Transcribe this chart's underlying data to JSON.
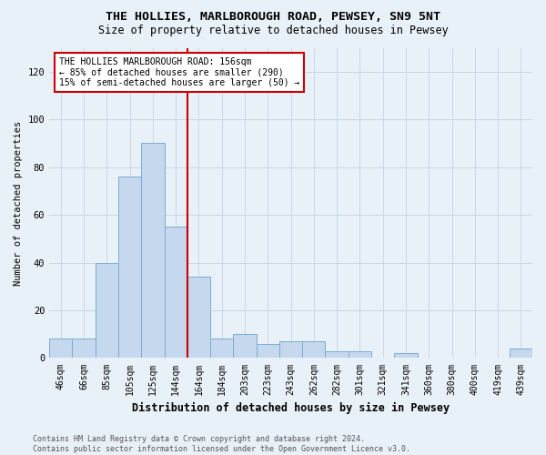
{
  "title": "THE HOLLIES, MARLBOROUGH ROAD, PEWSEY, SN9 5NT",
  "subtitle": "Size of property relative to detached houses in Pewsey",
  "xlabel": "Distribution of detached houses by size in Pewsey",
  "ylabel": "Number of detached properties",
  "categories": [
    "46sqm",
    "66sqm",
    "85sqm",
    "105sqm",
    "125sqm",
    "144sqm",
    "164sqm",
    "184sqm",
    "203sqm",
    "223sqm",
    "243sqm",
    "262sqm",
    "282sqm",
    "301sqm",
    "321sqm",
    "341sqm",
    "360sqm",
    "380sqm",
    "400sqm",
    "419sqm",
    "439sqm"
  ],
  "values": [
    8,
    8,
    40,
    76,
    90,
    55,
    34,
    8,
    10,
    6,
    7,
    7,
    3,
    3,
    0,
    2,
    0,
    0,
    0,
    0,
    4
  ],
  "bar_color": "#c5d8ed",
  "bar_edge_color": "#7aadd4",
  "grid_color": "#c8d8e8",
  "background_color": "#e8f0f8",
  "red_line_index": 6,
  "annotation_text": "THE HOLLIES MARLBOROUGH ROAD: 156sqm\n← 85% of detached houses are smaller (290)\n15% of semi-detached houses are larger (50) →",
  "annotation_box_color": "#ffffff",
  "annotation_edge_color": "#cc0000",
  "footer_line1": "Contains HM Land Registry data © Crown copyright and database right 2024.",
  "footer_line2": "Contains public sector information licensed under the Open Government Licence v3.0.",
  "ylim": [
    0,
    130
  ],
  "yticks": [
    0,
    20,
    40,
    60,
    80,
    100,
    120
  ]
}
